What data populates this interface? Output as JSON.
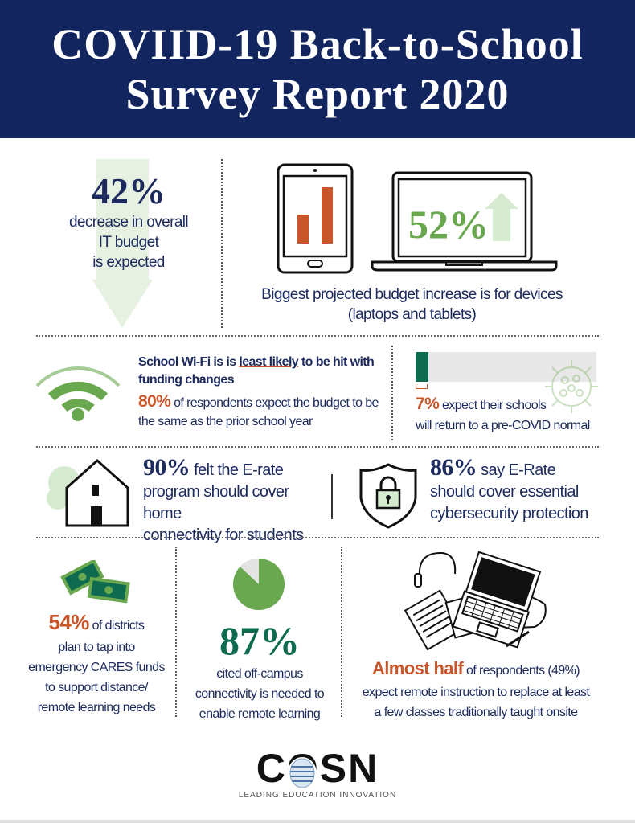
{
  "header": {
    "title_line1": "COVIID-19 Back-to-School",
    "title_line2": "Survey Report 2020"
  },
  "colors": {
    "navy": "#13255e",
    "orange": "#c9552a",
    "green": "#6aa84f",
    "dark_green": "#0f6b4f",
    "light_green": "#dcecd6"
  },
  "budget": {
    "value": "42%",
    "line1": "decrease in overall",
    "line2": "IT budget",
    "line3": "is expected"
  },
  "devices": {
    "value": "52%",
    "caption1": "Biggest projected budget increase is for devices",
    "caption2": "(laptops and tablets)"
  },
  "wifi": {
    "heading_pre": "School Wi-Fi is is ",
    "heading_underlined": "least likely",
    "heading_post": " to be hit with funding changes",
    "value": "80%",
    "text": " of respondents expect the budget to be the same as the prior school year"
  },
  "normal": {
    "value": "7%",
    "percent": 7,
    "text1": " expect their schools",
    "text2": "will return to a pre-COVID normal"
  },
  "erate_home": {
    "value": "90%",
    "text1": " felt the E-rate",
    "text2": "program should cover home",
    "text3": "connectivity for students"
  },
  "erate_security": {
    "value": "86%",
    "text1": " say E-Rate",
    "text2": "should cover essential",
    "text3": "cybersecurity protection"
  },
  "cares": {
    "value": "54%",
    "text1": " of districts",
    "text2": "plan to tap into",
    "text3": "emergency CARES funds",
    "text4": "to support distance/",
    "text5": "remote learning needs"
  },
  "offcampus": {
    "value": "87%",
    "percent": 87,
    "text1": "cited off-campus",
    "text2": "connectivity is needed to",
    "text3": "enable remote learning"
  },
  "remote": {
    "value": "Almost half",
    "text1": " of respondents (49%)",
    "text2": "expect remote instruction to replace at least",
    "text3": "a few classes traditionally taught onsite"
  },
  "logo": {
    "name": "COSN",
    "tagline": "LEADING EDUCATION INNOVATION"
  },
  "icons": [
    "down-arrow-icon",
    "tablet-chart-icon",
    "laptop-icon",
    "up-arrow-icon",
    "wifi-icon",
    "virus-icon",
    "house-icon",
    "shield-lock-icon",
    "money-icon",
    "pie-icon",
    "workspace-laptop-headset-icon"
  ]
}
